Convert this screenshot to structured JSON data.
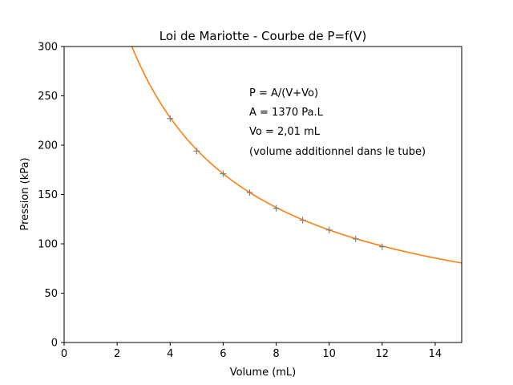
{
  "chart_data": {
    "type": "scatter",
    "title": "Loi de Mariotte - Courbe de P=f(V)",
    "xlabel": "Volume (mL)",
    "ylabel": "Pression (kPa)",
    "xlim": [
      0,
      15
    ],
    "ylim": [
      0,
      300
    ],
    "xticks": [
      0,
      2,
      4,
      6,
      8,
      10,
      12,
      14
    ],
    "yticks": [
      0,
      50,
      100,
      150,
      200,
      250,
      300
    ],
    "grid": false,
    "series": [
      {
        "kind": "scatter",
        "marker": "plus",
        "color": "#7f7f7f",
        "x": [
          4,
          5,
          6,
          7,
          8,
          9,
          10,
          11,
          12
        ],
        "y": [
          227,
          194,
          171,
          152,
          136,
          124,
          114,
          105,
          97
        ]
      },
      {
        "kind": "line",
        "color": "#ff7f0e",
        "function": "A/(V+Vo)",
        "A": 1370,
        "Vo": 2.01,
        "x_range": [
          0,
          15
        ]
      }
    ],
    "annotations": [
      "P = A/(V+Vo)",
      "A = 1370 Pa.L",
      "Vo = 2,01 mL",
      "(volume additionnel dans le tube)"
    ]
  }
}
